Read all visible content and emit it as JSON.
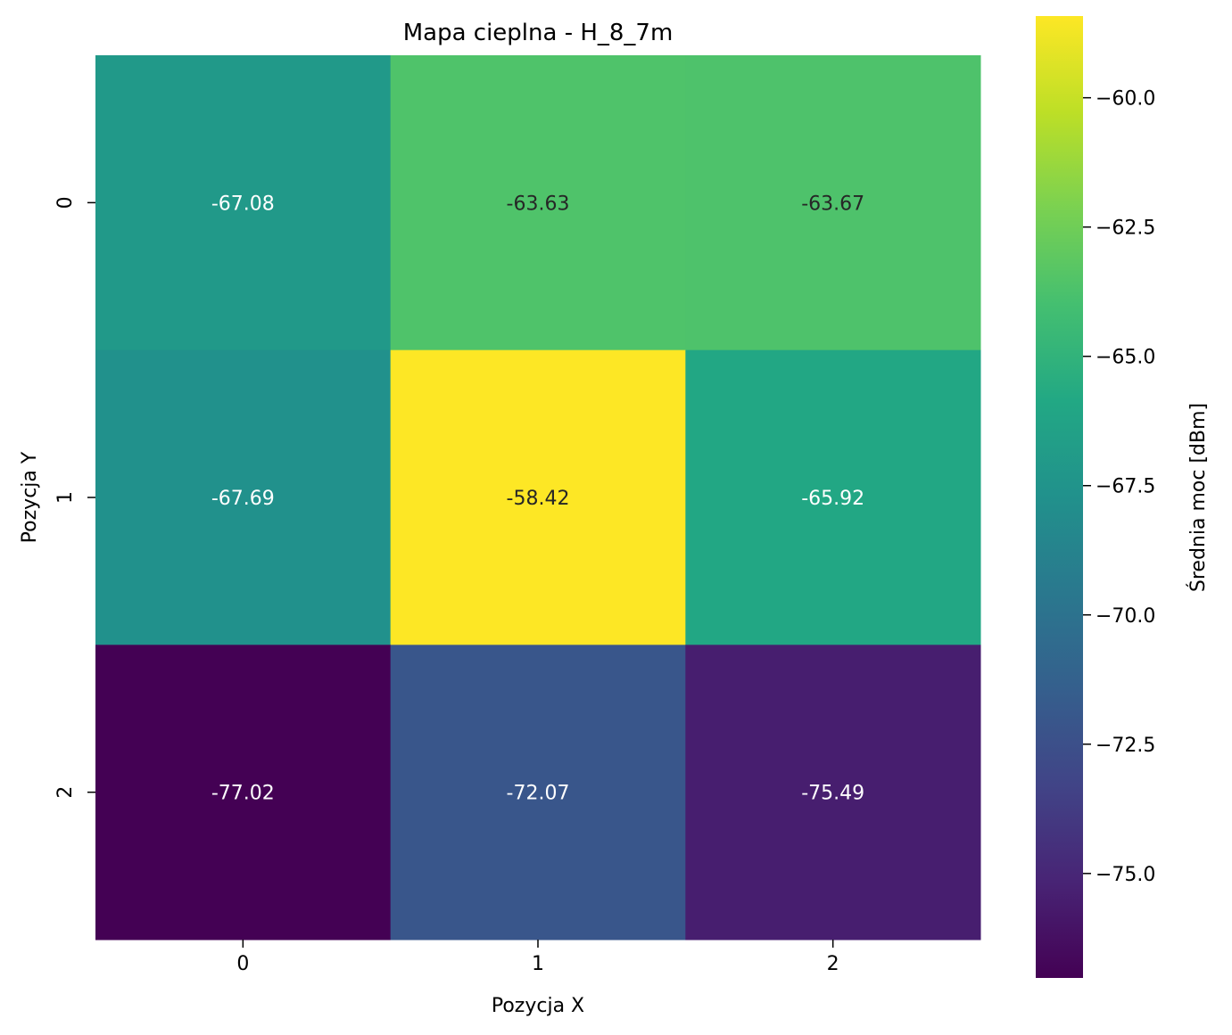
{
  "chart_data": {
    "type": "heatmap",
    "title": "Mapa cieplna - H_8_7m",
    "xlabel": "Pozycja X",
    "ylabel": "Pozycja Y",
    "x_categories": [
      "0",
      "1",
      "2"
    ],
    "y_categories": [
      "0",
      "1",
      "2"
    ],
    "values": [
      [
        -67.08,
        -63.63,
        -63.67
      ],
      [
        -67.69,
        -58.42,
        -65.92
      ],
      [
        -77.02,
        -72.07,
        -75.49
      ]
    ],
    "value_labels": [
      [
        "-67.08",
        "-63.63",
        "-63.67"
      ],
      [
        "-67.69",
        "-58.42",
        "-65.92"
      ],
      [
        "-77.02",
        "-72.07",
        "-75.49"
      ]
    ],
    "colormap": "viridis",
    "colorbar": {
      "label": "Średnia moc [dBm]",
      "range": [
        -77.02,
        -58.42
      ],
      "ticks": [
        -60.0,
        -62.5,
        -65.0,
        -67.5,
        -70.0,
        -72.5,
        -75.0
      ],
      "tick_labels": [
        "−60.0",
        "−62.5",
        "−65.0",
        "−67.5",
        "−70.0",
        "−72.5",
        "−75.0"
      ]
    },
    "colors": {
      "cell_text_light": "#ffffff",
      "cell_text_dark": "#262626"
    }
  }
}
